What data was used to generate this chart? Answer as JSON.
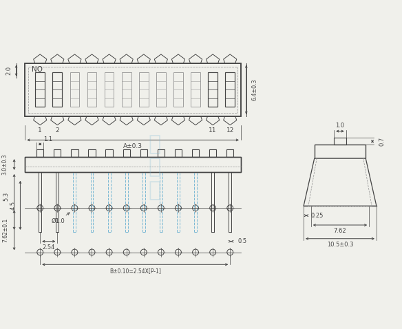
{
  "bg_color": "#f0f0eb",
  "line_color": "#444444",
  "dashed_color": "#999999",
  "blue_color": "#7ab8d4",
  "figsize": [
    5.84,
    4.78
  ],
  "dpi": 100,
  "n_switches": 12,
  "annotations": {
    "NO": "NO",
    "dim_20": "2.0",
    "dim_64": "6.4±0.3",
    "dim_A": "A±0.3",
    "dim_11": "1.1",
    "dim_30": "3.0±0.3",
    "dim_53": "5.3",
    "dim_45": "4.5",
    "dim_254": "2.54",
    "dim_05": "0.5",
    "dim_phi10": "Ø1.0",
    "dim_762a": "7.62±0.1",
    "dim_B": "B±0.10=2.54X[P-1]",
    "dim_07": "0.7",
    "dim_10": "1.0",
    "dim_025": "0.25",
    "dim_762b": "7.62",
    "dim_105": "10.5±0.3",
    "label_1": "1",
    "label_2": "2",
    "label_11": "11",
    "label_12": "12"
  }
}
